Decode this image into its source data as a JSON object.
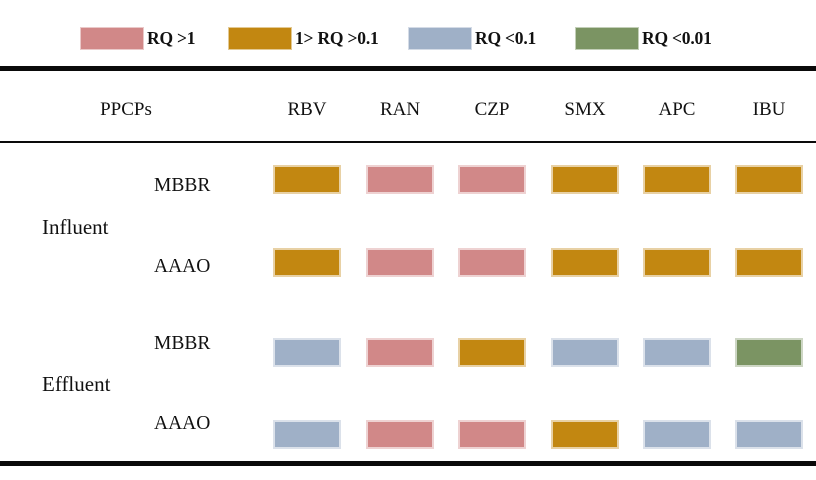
{
  "legend": {
    "items": [
      {
        "label": "RQ >1",
        "color": "#d18888"
      },
      {
        "label": "1> RQ >0.1",
        "color": "#c28711"
      },
      {
        "label": "RQ <0.1",
        "color": "#9fb0c7"
      },
      {
        "label": "RQ <0.01",
        "color": "#7b9463"
      }
    ]
  },
  "table": {
    "corner_header": "PPCPs",
    "columns": [
      "RBV",
      "RAN",
      "CZP",
      "SMX",
      "APC",
      "IBU"
    ],
    "groups": [
      {
        "label": "Influent",
        "rows": [
          {
            "label": "MBBR"
          },
          {
            "label": "AAAO"
          }
        ]
      },
      {
        "label": "Effluent",
        "rows": [
          {
            "label": "MBBR"
          },
          {
            "label": "AAAO"
          }
        ]
      }
    ]
  },
  "chart_data": {
    "type": "heatmap",
    "title": "",
    "columns": [
      "RBV",
      "RAN",
      "CZP",
      "SMX",
      "APC",
      "IBU"
    ],
    "rows": [
      {
        "group": "Influent",
        "system": "MBBR",
        "values": [
          "1> RQ >0.1",
          "RQ >1",
          "RQ >1",
          "1> RQ >0.1",
          "1> RQ >0.1",
          "1> RQ >0.1"
        ]
      },
      {
        "group": "Influent",
        "system": "AAAO",
        "values": [
          "1> RQ >0.1",
          "RQ >1",
          "RQ >1",
          "1> RQ >0.1",
          "1> RQ >0.1",
          "1> RQ >0.1"
        ]
      },
      {
        "group": "Effluent",
        "system": "MBBR",
        "values": [
          "RQ <0.1",
          "RQ >1",
          "1> RQ >0.1",
          "RQ <0.1",
          "RQ <0.1",
          "RQ <0.01"
        ]
      },
      {
        "group": "Effluent",
        "system": "AAAO",
        "values": [
          "RQ <0.1",
          "RQ >1",
          "RQ >1",
          "1> RQ >0.1",
          "RQ <0.1",
          "RQ <0.1"
        ]
      }
    ],
    "legend_categories": [
      {
        "label": "RQ >1",
        "color": "#d18888"
      },
      {
        "label": "1> RQ >0.1",
        "color": "#c28711"
      },
      {
        "label": "RQ <0.1",
        "color": "#9fb0c7"
      },
      {
        "label": "RQ <0.01",
        "color": "#7b9463"
      }
    ],
    "layout_hints": {
      "legend_position": "top",
      "grid": false
    }
  }
}
